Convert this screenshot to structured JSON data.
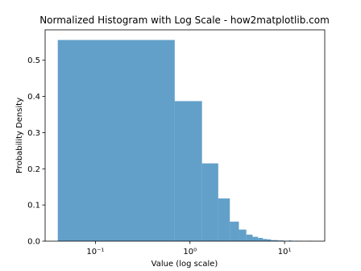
{
  "chart_data": {
    "type": "histogram",
    "title": "Normalized Histogram with Log Scale - how2matplotlib.com",
    "x_label": "Value (log scale)",
    "y_label": "Probability Density",
    "bins": [
      0.04,
      0.69,
      1.34,
      1.99,
      2.64,
      3.29,
      3.94,
      4.59,
      5.24,
      5.89,
      6.54,
      7.19,
      7.84,
      8.49,
      9.14,
      9.79,
      10.44,
      11.09,
      11.74,
      12.39,
      13.04,
      13.69,
      14.34,
      14.99,
      15.64,
      16.29,
      16.94,
      17.59,
      18.24,
      18.89,
      19.54
    ],
    "values": [
      0.556,
      0.387,
      0.215,
      0.118,
      0.054,
      0.032,
      0.018,
      0.012,
      0.009,
      0.006,
      0.005,
      0.003,
      0.003,
      0.002,
      0.002,
      0.001,
      0.001,
      0.002,
      0.001,
      0.0,
      0.001,
      0.0,
      0.001,
      0.0,
      0.0,
      0.0,
      0.0,
      0.001,
      0.0,
      0.001
    ],
    "color": "#1f77b4",
    "alpha": 0.7,
    "xscale": "log",
    "xlim": [
      0.0294,
      26.6
    ],
    "xticks": [
      {
        "value": 0.1,
        "label": "10⁻¹"
      },
      {
        "value": 1,
        "label": "10⁰"
      },
      {
        "value": 10,
        "label": "10¹"
      }
    ],
    "ylim": [
      0,
      0.584
    ],
    "yticks": [
      {
        "value": 0,
        "label": "0.0"
      },
      0.1,
      0.2,
      0.3,
      0.4,
      0.5
    ]
  }
}
